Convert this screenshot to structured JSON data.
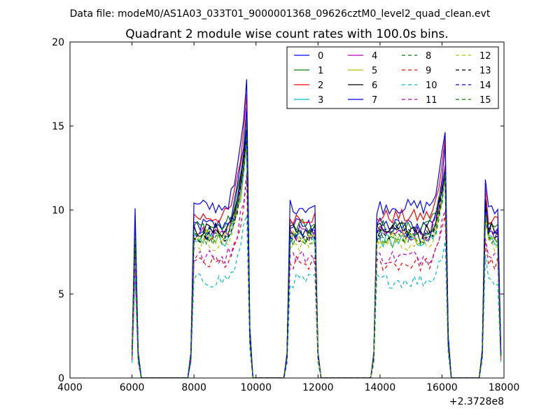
{
  "suptitle": "Data file: modeM0/AS1A03_033T01_9000001368_09626cztM0_level2_quad_clean.evt",
  "chart_data": {
    "type": "line",
    "title": "Quadrant 2 module wise count rates with 100.0s bins.",
    "xlabel": "",
    "ylabel": "",
    "xlim": [
      4000,
      18000
    ],
    "ylim": [
      0,
      20
    ],
    "x_offset_label": "+2.3728e8",
    "xticks": [
      4000,
      6000,
      8000,
      10000,
      12000,
      14000,
      16000,
      18000
    ],
    "xtick_labels": [
      "4000",
      "6000",
      "8000",
      "10000",
      "12000",
      "14000",
      "16000",
      "18000"
    ],
    "yticks": [
      0,
      5,
      10,
      15,
      20
    ],
    "ytick_labels": [
      "0",
      "5",
      "10",
      "15",
      "20"
    ],
    "grid": false,
    "legend": "top-right",
    "legend_columns": 4,
    "segments": [
      [
        5950,
        6250
      ],
      [
        7850,
        9850
      ],
      [
        11000,
        12050
      ],
      [
        13750,
        16250
      ],
      [
        17300,
        17950
      ]
    ],
    "series": [
      {
        "name": "0",
        "color": "#0000ff",
        "dash": "solid",
        "level": 9.1,
        "peak": 2.2
      },
      {
        "name": "1",
        "color": "#008000",
        "dash": "solid",
        "level": 9.0,
        "peak": 2.0
      },
      {
        "name": "2",
        "color": "#ff0000",
        "dash": "solid",
        "level": 9.6,
        "peak": 2.3
      },
      {
        "name": "3",
        "color": "#00bfbf",
        "dash": "solid",
        "level": 8.2,
        "peak": 1.8
      },
      {
        "name": "4",
        "color": "#bf00bf",
        "dash": "solid",
        "level": 8.6,
        "peak": 1.9
      },
      {
        "name": "5",
        "color": "#bfbf00",
        "dash": "solid",
        "level": 8.4,
        "peak": 1.8
      },
      {
        "name": "6",
        "color": "#000000",
        "dash": "solid",
        "level": 8.8,
        "peak": 2.0
      },
      {
        "name": "7",
        "color": "#0000ff",
        "dash": "solid",
        "level": 10.2,
        "peak": 2.3
      },
      {
        "name": "8",
        "color": "#008000",
        "dash": "dashed",
        "level": 8.3,
        "peak": 1.8
      },
      {
        "name": "9",
        "color": "#ff0000",
        "dash": "dashed",
        "level": 6.8,
        "peak": 1.5
      },
      {
        "name": "10",
        "color": "#00bfbf",
        "dash": "dashed",
        "level": 5.8,
        "peak": 1.3
      },
      {
        "name": "11",
        "color": "#bf00bf",
        "dash": "dashed",
        "level": 7.2,
        "peak": 1.6
      },
      {
        "name": "12",
        "color": "#bfbf00",
        "dash": "dashed",
        "level": 8.0,
        "peak": 1.8
      },
      {
        "name": "13",
        "color": "#000000",
        "dash": "dashed",
        "level": 8.5,
        "peak": 1.9
      },
      {
        "name": "14",
        "color": "#0000ff",
        "dash": "dashed",
        "level": 8.7,
        "peak": 1.9
      },
      {
        "name": "15",
        "color": "#008000",
        "dash": "dashed",
        "level": 8.4,
        "peak": 1.8
      }
    ]
  }
}
